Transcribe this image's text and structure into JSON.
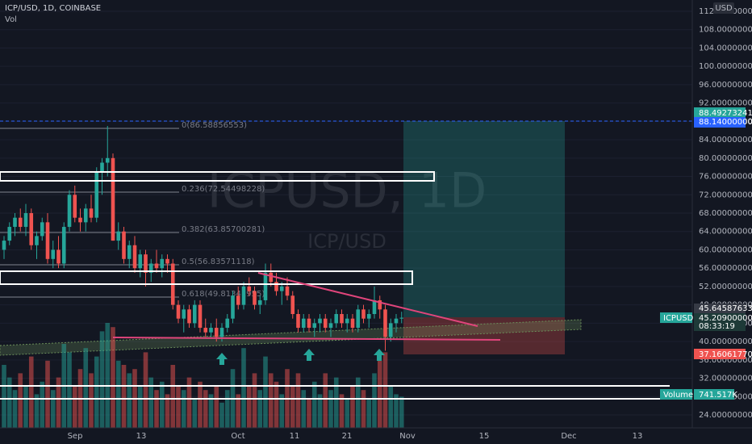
{
  "chart_data": {
    "type": "candlestick",
    "title": "ICP/USD, 1D, COINBASE",
    "indicator": "Vol",
    "watermark": "ICPUSD, 1D",
    "watermark_sub": "ICP/USD",
    "currency": "USD",
    "up_color": "#26a69a",
    "down_color": "#ef5350",
    "ylim": [
      22,
      112.5
    ],
    "yticks": [
      {
        "value": 24,
        "label": "24.00000000"
      },
      {
        "value": 28,
        "label": "28.00000000"
      },
      {
        "value": 32,
        "label": "32.00000000"
      },
      {
        "value": 36,
        "label": "36.00000000"
      },
      {
        "value": 40,
        "label": "40.00000000"
      },
      {
        "value": 44,
        "label": "44.00000000"
      },
      {
        "value": 48,
        "label": "48.00000000"
      },
      {
        "value": 52,
        "label": "52.00000000"
      },
      {
        "value": 56,
        "label": "56.00000000"
      },
      {
        "value": 60,
        "label": "60.00000000"
      },
      {
        "value": 64,
        "label": "64.00000000"
      },
      {
        "value": 68,
        "label": "68.00000000"
      },
      {
        "value": 72,
        "label": "72.00000000"
      },
      {
        "value": 76,
        "label": "76.00000000"
      },
      {
        "value": 80,
        "label": "80.00000000"
      },
      {
        "value": 84,
        "label": "84.00000000"
      },
      {
        "value": 88,
        "label": "88.00000000"
      },
      {
        "value": 92,
        "label": "92.00000000"
      },
      {
        "value": 96,
        "label": "96.00000000"
      },
      {
        "value": 100,
        "label": "100.00000000"
      },
      {
        "value": 104,
        "label": "104.00000000"
      },
      {
        "value": 108,
        "label": "108.00000000"
      },
      {
        "value": 112,
        "label": "112.00000000"
      }
    ],
    "x_labels": [
      "Sep",
      "13",
      "Oct",
      "11",
      "21",
      "Nov",
      "15",
      "Dec",
      "13"
    ],
    "values": [
      [
        60,
        63,
        58,
        62
      ],
      [
        62,
        66,
        61,
        65
      ],
      [
        65,
        68,
        63,
        67
      ],
      [
        67,
        69,
        64,
        65
      ],
      [
        65,
        70,
        63,
        68
      ],
      [
        68,
        69,
        60,
        61
      ],
      [
        61,
        64,
        58,
        63
      ],
      [
        63,
        67,
        62,
        66
      ],
      [
        66,
        68,
        57,
        58
      ],
      [
        58,
        62,
        56,
        60
      ],
      [
        60,
        63,
        56,
        57
      ],
      [
        57,
        66,
        56,
        65
      ],
      [
        65,
        73,
        64,
        72
      ],
      [
        72,
        74,
        66,
        67
      ],
      [
        67,
        69,
        64,
        66
      ],
      [
        66,
        70,
        64,
        69
      ],
      [
        69,
        72,
        66,
        67
      ],
      [
        67,
        78,
        66,
        77
      ],
      [
        77,
        80,
        72,
        79
      ],
      [
        79,
        87,
        76,
        80
      ],
      [
        80,
        81,
        62,
        62
      ],
      [
        62,
        66,
        60,
        64
      ],
      [
        64,
        65,
        57,
        58
      ],
      [
        58,
        62,
        56,
        61
      ],
      [
        61,
        63,
        55,
        56
      ],
      [
        56,
        60,
        54,
        59
      ],
      [
        59,
        60,
        52,
        55
      ],
      [
        55,
        58,
        53,
        57
      ],
      [
        57,
        60,
        55,
        56
      ],
      [
        56,
        59,
        54,
        58
      ],
      [
        58,
        59,
        55,
        57
      ],
      [
        57,
        58,
        47,
        48
      ],
      [
        48,
        49,
        44,
        45
      ],
      [
        45,
        48,
        42,
        47
      ],
      [
        47,
        48,
        43,
        44
      ],
      [
        44,
        49,
        43,
        48
      ],
      [
        48,
        49,
        42,
        43
      ],
      [
        43,
        45,
        41,
        42
      ],
      [
        42,
        44,
        41,
        43
      ],
      [
        43,
        45,
        40,
        41
      ],
      [
        41,
        44,
        40,
        43
      ],
      [
        43,
        46,
        42,
        45
      ],
      [
        45,
        51,
        44,
        50
      ],
      [
        50,
        52,
        47,
        48
      ],
      [
        48,
        53,
        47,
        52
      ],
      [
        52,
        54,
        50,
        51
      ],
      [
        51,
        52,
        47,
        48
      ],
      [
        48,
        50,
        46,
        49
      ],
      [
        49,
        57,
        48,
        55
      ],
      [
        55,
        57,
        52,
        53
      ],
      [
        53,
        55,
        50,
        51
      ],
      [
        51,
        53,
        48,
        52
      ],
      [
        52,
        54,
        49,
        50
      ],
      [
        50,
        51,
        45,
        46
      ],
      [
        46,
        47,
        42,
        43
      ],
      [
        43,
        46,
        42,
        45
      ],
      [
        45,
        46,
        42,
        43
      ],
      [
        43,
        45,
        41,
        44
      ],
      [
        44,
        46,
        42,
        45
      ],
      [
        45,
        46,
        42,
        43
      ],
      [
        43,
        45,
        41,
        44
      ],
      [
        44,
        47,
        43,
        46
      ],
      [
        46,
        47,
        43,
        44
      ],
      [
        44,
        46,
        42,
        45
      ],
      [
        45,
        46,
        42,
        43
      ],
      [
        43,
        48,
        42,
        47
      ],
      [
        47,
        48,
        44,
        45
      ],
      [
        45,
        47,
        43,
        46
      ],
      [
        46,
        52,
        45,
        49
      ],
      [
        49,
        50,
        45,
        47
      ],
      [
        47,
        48,
        38,
        41
      ],
      [
        41,
        45,
        40,
        44
      ],
      [
        44,
        46,
        42,
        45
      ],
      [
        45,
        46.5,
        44,
        45.2
      ]
    ],
    "volume": [
      1500,
      1200,
      900,
      1300,
      1000,
      1700,
      800,
      1100,
      1600,
      900,
      1200,
      2000,
      1800,
      1000,
      1400,
      1900,
      1300,
      1700,
      2300,
      2500,
      2400,
      1600,
      1500,
      1300,
      1400,
      1000,
      1800,
      1200,
      900,
      1100,
      800,
      1500,
      1000,
      900,
      1200,
      700,
      1100,
      900,
      800,
      1000,
      600,
      900,
      1400,
      800,
      1900,
      1000,
      1300,
      900,
      1700,
      1300,
      1100,
      800,
      1400,
      1000,
      1300,
      900,
      700,
      1100,
      800,
      1300,
      900,
      1200,
      800,
      700,
      1000,
      1200,
      900,
      700,
      1300,
      1600,
      1800,
      1000,
      800,
      741.517
    ],
    "fib_labels": [
      "0(86.58856553)",
      "0.236(72.54498228)",
      "0.382(63.85700281)",
      "0.5(56.83571118)",
      "0.618(49.81341955)"
    ],
    "tags": {
      "target_top": "88.49273241",
      "target": "88.14000000",
      "symbol": "ICPUSD",
      "last_high": "45.64587633",
      "last": "45.20900000",
      "countdown": "08:33:19",
      "stop": "37.16061770",
      "volume_name": "Volume",
      "volume_last": "741.517K"
    }
  }
}
